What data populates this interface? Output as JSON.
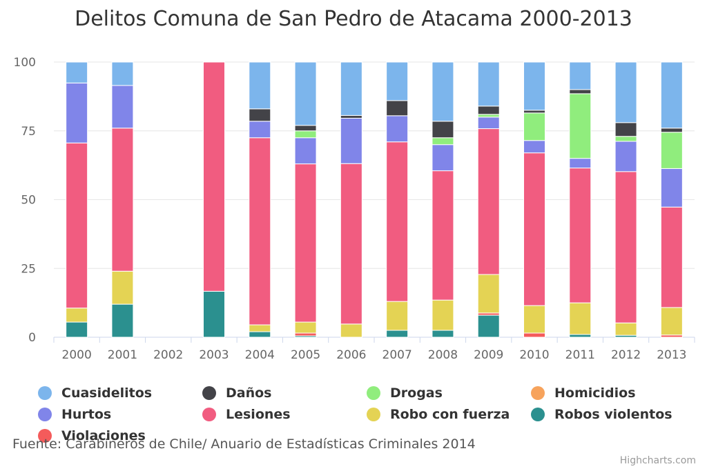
{
  "chart_data": {
    "type": "bar",
    "stacked": true,
    "title": "Delitos Comuna de San Pedro de Atacama 2000-2013",
    "categories": [
      "2000",
      "2001",
      "2002",
      "2003",
      "2004",
      "2005",
      "2006",
      "2007",
      "2008",
      "2009",
      "2010",
      "2011",
      "2012",
      "2013"
    ],
    "ylim": [
      0,
      100
    ],
    "yticks": [
      0,
      25,
      50,
      75,
      100
    ],
    "grid": true,
    "legend_position": "bottom",
    "series": [
      {
        "name": "Robos violentos",
        "color": "#2b908f",
        "values": [
          5.5,
          12,
          0,
          16.7,
          2,
          0.5,
          0,
          2.5,
          2.5,
          8,
          0,
          1,
          0.7,
          0
        ]
      },
      {
        "name": "Violaciones",
        "color": "#f45b5b",
        "values": [
          0,
          0,
          0,
          0,
          0,
          1,
          0,
          0,
          0,
          0.8,
          1.5,
          0,
          0,
          0.8
        ]
      },
      {
        "name": "Homicidios",
        "color": "#f7a35c",
        "values": [
          0,
          0,
          0,
          0,
          0,
          0,
          0,
          0,
          0,
          0,
          0,
          0,
          0,
          0
        ]
      },
      {
        "name": "Robo con fuerza",
        "color": "#e4d354",
        "values": [
          5.1,
          12,
          0,
          0,
          2.5,
          4,
          4.8,
          10.5,
          11,
          14,
          10,
          11.5,
          4.5,
          10
        ]
      },
      {
        "name": "Lesiones",
        "color": "#f15c80",
        "values": [
          60,
          52,
          0,
          83.3,
          68,
          57.5,
          58.3,
          58,
          47,
          53,
          55.5,
          49,
          55,
          36.5
        ]
      },
      {
        "name": "Hurtos",
        "color": "#8085e9",
        "values": [
          21.8,
          15.5,
          0,
          0,
          6,
          9.5,
          16.5,
          9.5,
          9.5,
          4.2,
          4.5,
          3.5,
          11,
          14
        ]
      },
      {
        "name": "Drogas",
        "color": "#90ed7d",
        "values": [
          0,
          0,
          0,
          0,
          0,
          2.5,
          0,
          0,
          2.5,
          1,
          10,
          23.5,
          1.8,
          13.2
        ]
      },
      {
        "name": "Daños",
        "color": "#434348",
        "values": [
          0,
          0,
          0,
          0,
          4.5,
          2,
          1,
          5.5,
          6,
          3,
          1,
          1.5,
          5,
          1.5
        ]
      },
      {
        "name": "Cuasidelitos",
        "color": "#7cb5ec",
        "values": [
          7.6,
          8.5,
          0,
          0,
          17,
          23,
          19.4,
          14,
          21.5,
          16,
          17.5,
          10,
          22,
          24
        ]
      }
    ]
  },
  "legend": [
    {
      "label": "Cuasidelitos",
      "color": "#7cb5ec"
    },
    {
      "label": "Daños",
      "color": "#434348"
    },
    {
      "label": "Drogas",
      "color": "#90ed7d"
    },
    {
      "label": "Homicidios",
      "color": "#f7a35c"
    },
    {
      "label": "Hurtos",
      "color": "#8085e9"
    },
    {
      "label": "Lesiones",
      "color": "#f15c80"
    },
    {
      "label": "Robo con fuerza",
      "color": "#e4d354"
    },
    {
      "label": "Robos violentos",
      "color": "#2b908f"
    },
    {
      "label": "Violaciones",
      "color": "#f45b5b"
    }
  ],
  "source_text": "Fuente: Carabineros de Chile/ Anuario de Estadísticas Criminales 2014",
  "credits_text": "Highcharts.com"
}
